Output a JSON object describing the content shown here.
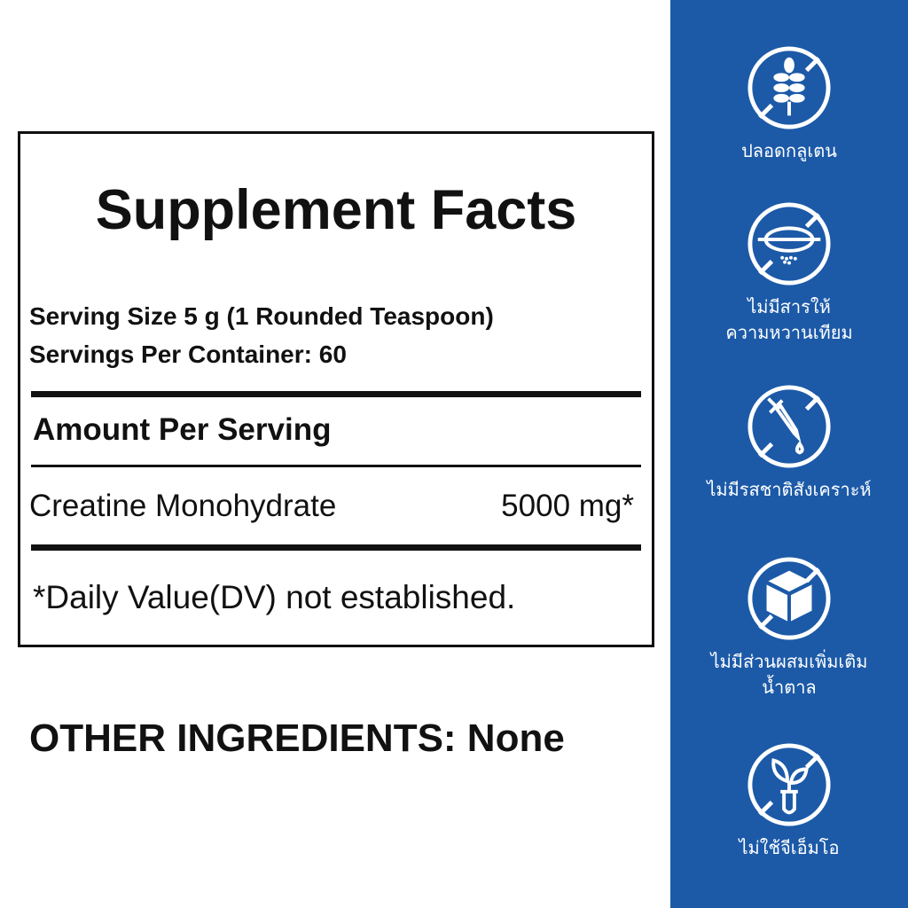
{
  "facts": {
    "title": "Supplement Facts",
    "serving_size": "Serving Size 5 g (1 Rounded Teaspoon)",
    "servings_per_container": "Servings Per Container: 60",
    "amount_header": "Amount Per Serving",
    "ingredient": {
      "name": "Creatine Monohydrate",
      "amount": "5000 mg*"
    },
    "footnote": "*Daily Value(DV) not established."
  },
  "other_ingredients": "OTHER INGREDIENTS: None",
  "colors": {
    "sidebar": "#1c5aa8",
    "text": "#111111"
  },
  "badges": [
    {
      "icon": "no-gluten-wheat-icon",
      "lines": [
        "ปลอดกลูเตน"
      ]
    },
    {
      "icon": "no-artificial-sweetener-icon",
      "lines": [
        "ไม่มีสารให้",
        "ความหวานเทียม"
      ]
    },
    {
      "icon": "no-artificial-flavor-dropper-icon",
      "lines": [
        "ไม่มีรสชาติสังเคราะห์"
      ]
    },
    {
      "icon": "no-added-sugar-cube-icon",
      "lines": [
        "ไม่มีส่วนผสมเพิ่มเติม",
        "น้ำตาล"
      ]
    },
    {
      "icon": "non-gmo-plant-icon",
      "lines": [
        "ไม่ใช้จีเอ็มโอ"
      ]
    }
  ]
}
